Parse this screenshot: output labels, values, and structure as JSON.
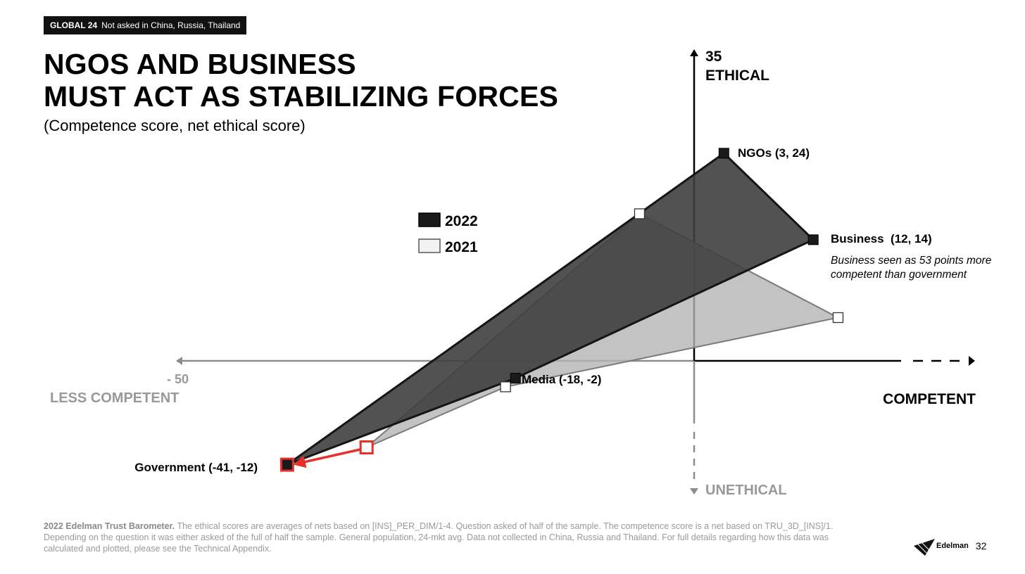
{
  "badge": {
    "region": "GLOBAL 24",
    "note": "Not asked in China, Russia, Thailand"
  },
  "title_lines": [
    "NGOS AND BUSINESS",
    "MUST ACT AS STABILIZING FORCES"
  ],
  "subtitle": "(Competence score, net ethical score)",
  "chart_data": {
    "type": "scatter",
    "title": "NGOS AND BUSINESS MUST ACT AS STABILIZING FORCES",
    "subtitle": "(Competence score, net ethical score)",
    "axes": {
      "x_label_positive": "COMPETENT",
      "x_label_negative": "LESS COMPETENT",
      "x_min_label": "- 50",
      "y_label_positive": "ETHICAL",
      "y_label_negative": "UNETHICAL",
      "y_max_label": "35",
      "xlim": [
        -50,
        30
      ],
      "ylim": [
        -16,
        35
      ],
      "grid": false
    },
    "legend": {
      "position": "center-left",
      "entries": [
        "2022",
        "2021"
      ]
    },
    "series": [
      {
        "name": "2022",
        "color": "#1a1a1a",
        "fill": "#3f3f3f",
        "points": [
          {
            "name": "NGOs",
            "x": 3,
            "y": 24,
            "label": "NGOs (3, 24)"
          },
          {
            "name": "Business",
            "x": 12,
            "y": 14,
            "label": "Business  (12, 14)"
          },
          {
            "name": "Media",
            "x": -18,
            "y": -2,
            "label": "Media (-18, -2)"
          },
          {
            "name": "Government",
            "x": -41,
            "y": -12,
            "label": "Government (-41, -12)"
          }
        ]
      },
      {
        "name": "2021",
        "color": "#ffffff",
        "fill": "#b4b4b4",
        "points": [
          {
            "name": "NGOs",
            "x": -5.5,
            "y": 17
          },
          {
            "name": "Business",
            "x": 14.5,
            "y": 5
          },
          {
            "name": "Media",
            "x": -19,
            "y": -3
          },
          {
            "name": "Government",
            "x": -33,
            "y": -10
          }
        ]
      }
    ],
    "annotations": [
      {
        "text": "Business seen as 53 points more competent than government",
        "lines": [
          "Business seen as 53 points more",
          "competent than government"
        ]
      }
    ],
    "highlight": {
      "from_series": "2021",
      "to_series": "2022",
      "point": "Government",
      "color": "#e8302a"
    }
  },
  "footnote": {
    "lead": "2022 Edelman Trust Barometer.",
    "text": " The ethical scores are averages of nets based on [INS]_PER_DIM/1-4. Question asked of half of the sample. The competence score is a net based on TRU_3D_[INS]/1. Depending on the question it was either asked of the full of half the sample. General population, 24-mkt avg. Data not collected in China, Russia and Thailand. For full details regarding how this data was calculated and plotted, please see the Technical Appendix."
  },
  "brand": {
    "name": "Edelman",
    "page": "32"
  }
}
